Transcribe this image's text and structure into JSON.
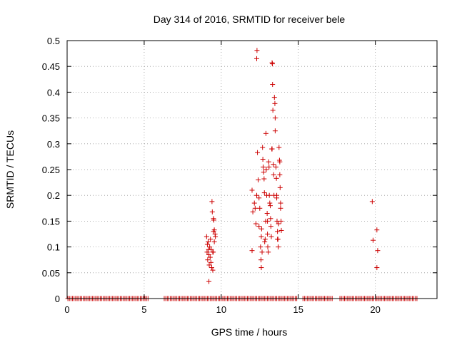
{
  "chart_data": {
    "type": "scatter",
    "title": "Day 314 of 2016, SRMTID for receiver bele",
    "xlabel": "GPS time / hours",
    "ylabel": "SRMTID / TECUs",
    "xlim": [
      0,
      24
    ],
    "ylim": [
      0,
      0.5
    ],
    "xticks": [
      0,
      5,
      10,
      15,
      20
    ],
    "xtick_labels": [
      "0",
      "5",
      "10",
      "15",
      "20"
    ],
    "yticks": [
      0,
      0.05,
      0.1,
      0.15,
      0.2,
      0.25,
      0.3,
      0.35,
      0.4,
      0.45,
      0.5
    ],
    "ytick_labels": [
      "0",
      "0.05",
      "0.1",
      "0.15",
      "0.2",
      "0.25",
      "0.3",
      "0.35",
      "0.4",
      "0.45",
      "0.5"
    ],
    "grid": true,
    "marker": "+",
    "color": "#cc0000",
    "zero_baseline": {
      "y": 0,
      "x_ranges": [
        [
          0.05,
          5.3
        ],
        [
          6.3,
          14.9
        ],
        [
          15.3,
          17.2
        ],
        [
          17.7,
          22.7
        ]
      ],
      "x_step": 0.1
    },
    "points": [
      [
        9.05,
        0.12
      ],
      [
        9.1,
        0.105
      ],
      [
        9.08,
        0.09
      ],
      [
        9.12,
        0.075
      ],
      [
        9.15,
        0.11
      ],
      [
        9.18,
        0.095
      ],
      [
        9.2,
        0.085
      ],
      [
        9.22,
        0.065
      ],
      [
        9.25,
        0.1
      ],
      [
        9.28,
        0.08
      ],
      [
        9.3,
        0.115
      ],
      [
        9.33,
        0.07
      ],
      [
        9.35,
        0.095
      ],
      [
        9.38,
        0.06
      ],
      [
        9.2,
        0.033
      ],
      [
        9.4,
        0.188
      ],
      [
        9.42,
        0.168
      ],
      [
        9.45,
        0.09
      ],
      [
        9.5,
        0.155
      ],
      [
        9.55,
        0.133
      ],
      [
        9.6,
        0.125
      ],
      [
        9.55,
        0.11
      ],
      [
        9.48,
        0.09
      ],
      [
        9.52,
        0.152
      ],
      [
        9.45,
        0.055
      ],
      [
        9.62,
        0.12
      ],
      [
        9.5,
        0.13
      ],
      [
        12.0,
        0.21
      ],
      [
        12.05,
        0.168
      ],
      [
        12.0,
        0.093
      ],
      [
        12.15,
        0.185
      ],
      [
        12.2,
        0.175
      ],
      [
        12.25,
        0.145
      ],
      [
        12.3,
        0.2
      ],
      [
        12.3,
        0.465
      ],
      [
        12.32,
        0.481
      ],
      [
        12.35,
        0.283
      ],
      [
        12.4,
        0.23
      ],
      [
        12.45,
        0.195
      ],
      [
        12.45,
        0.14
      ],
      [
        12.5,
        0.175
      ],
      [
        12.55,
        0.1
      ],
      [
        12.58,
        0.075
      ],
      [
        12.6,
        0.06
      ],
      [
        12.6,
        0.12
      ],
      [
        12.62,
        0.135
      ],
      [
        12.65,
        0.09
      ],
      [
        12.68,
        0.293
      ],
      [
        12.7,
        0.27
      ],
      [
        12.72,
        0.255
      ],
      [
        12.75,
        0.245
      ],
      [
        12.78,
        0.232
      ],
      [
        12.8,
        0.205
      ],
      [
        12.82,
        0.11
      ],
      [
        12.85,
        0.115
      ],
      [
        12.88,
        0.15
      ],
      [
        12.9,
        0.32
      ],
      [
        12.92,
        0.25
      ],
      [
        12.95,
        0.2
      ],
      [
        12.98,
        0.165
      ],
      [
        13.0,
        0.15
      ],
      [
        13.0,
        0.125
      ],
      [
        13.02,
        0.1
      ],
      [
        13.05,
        0.09
      ],
      [
        13.08,
        0.265
      ],
      [
        13.1,
        0.255
      ],
      [
        13.12,
        0.2
      ],
      [
        13.15,
        0.185
      ],
      [
        13.18,
        0.18
      ],
      [
        13.2,
        0.155
      ],
      [
        13.22,
        0.14
      ],
      [
        13.25,
        0.12
      ],
      [
        13.28,
        0.29
      ],
      [
        13.3,
        0.29
      ],
      [
        13.3,
        0.457
      ],
      [
        13.32,
        0.455
      ],
      [
        13.33,
        0.415
      ],
      [
        13.35,
        0.365
      ],
      [
        13.38,
        0.26
      ],
      [
        13.4,
        0.24
      ],
      [
        13.42,
        0.2
      ],
      [
        13.45,
        0.39
      ],
      [
        13.48,
        0.378
      ],
      [
        13.5,
        0.35
      ],
      [
        13.5,
        0.325
      ],
      [
        13.55,
        0.255
      ],
      [
        13.58,
        0.233
      ],
      [
        13.6,
        0.195
      ],
      [
        13.62,
        0.15
      ],
      [
        13.65,
        0.13
      ],
      [
        13.68,
        0.115
      ],
      [
        13.7,
        0.1
      ],
      [
        13.72,
        0.145
      ],
      [
        13.75,
        0.293
      ],
      [
        13.78,
        0.268
      ],
      [
        13.8,
        0.265
      ],
      [
        13.8,
        0.24
      ],
      [
        13.82,
        0.215
      ],
      [
        13.85,
        0.185
      ],
      [
        13.85,
        0.175
      ],
      [
        13.88,
        0.15
      ],
      [
        13.9,
        0.132
      ],
      [
        13.65,
        0.115
      ],
      [
        13.6,
        0.2
      ],
      [
        19.8,
        0.188
      ],
      [
        19.85,
        0.113
      ],
      [
        20.1,
        0.133
      ],
      [
        20.15,
        0.093
      ],
      [
        20.1,
        0.06
      ]
    ]
  }
}
